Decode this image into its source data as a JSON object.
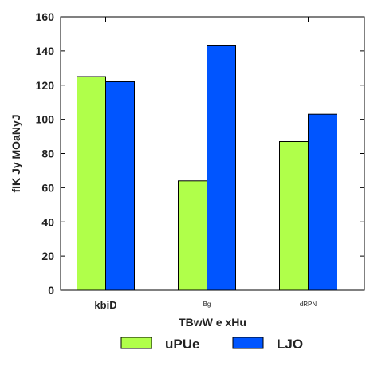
{
  "chart_data": {
    "type": "bar",
    "categories": [
      "kbiD",
      "Bg",
      "dRPN"
    ],
    "series": [
      {
        "name": "uPUe",
        "values": [
          125,
          64,
          87
        ],
        "color": "#b0ff4a"
      },
      {
        "name": "LJO",
        "values": [
          122,
          143,
          103
        ],
        "color": "#0055ff"
      }
    ],
    "xlabel": "TBwW e xHu",
    "ylabel": "fIK Jy MOaNyJ",
    "ylim": [
      0,
      160
    ],
    "yticks": [
      0,
      20,
      40,
      60,
      80,
      100,
      120,
      140,
      160
    ],
    "grid": false,
    "legend_position": "bottom"
  }
}
